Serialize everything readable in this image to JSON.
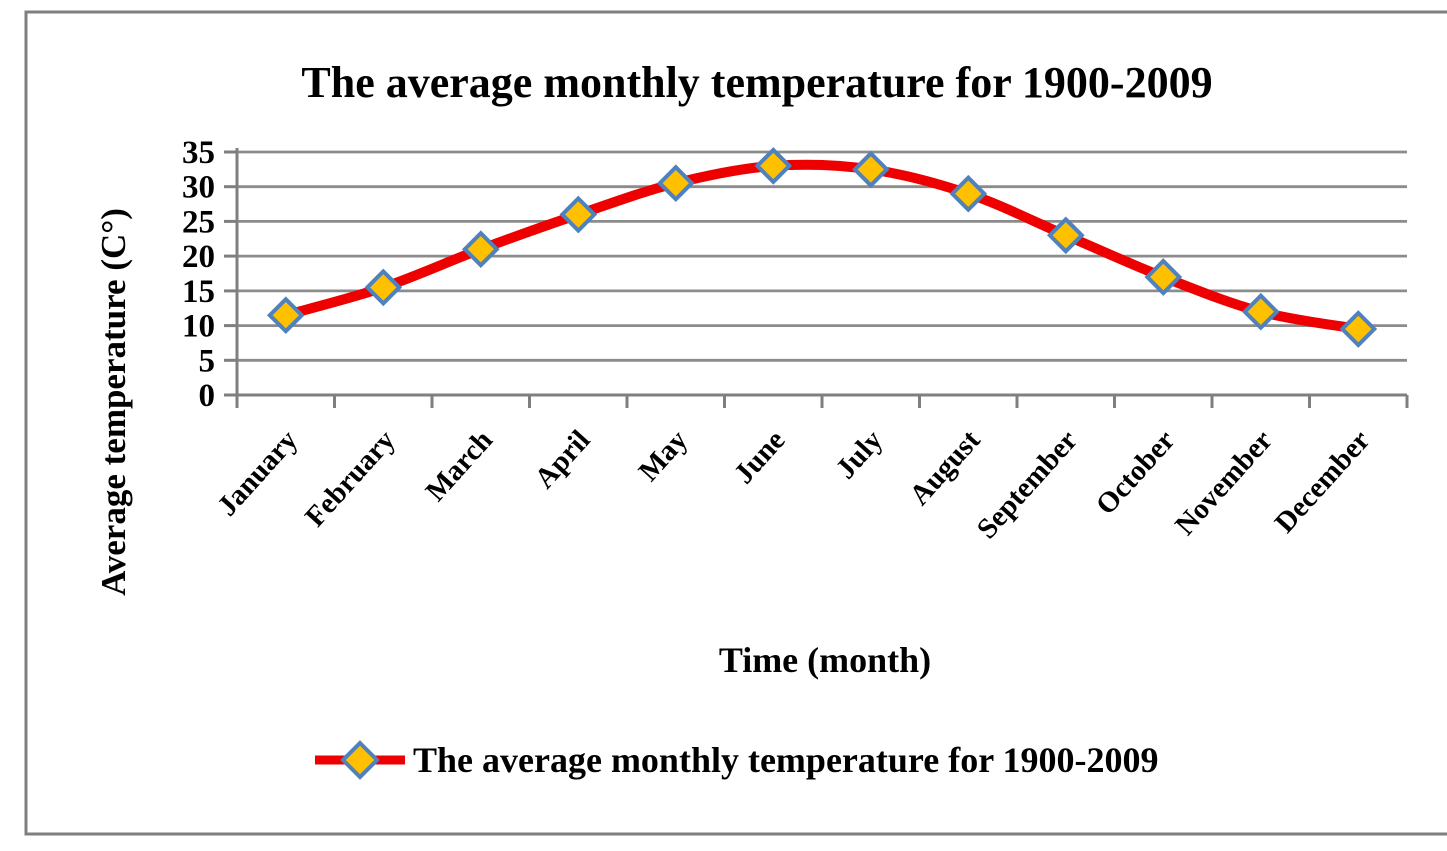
{
  "frame": {
    "border_color": "#7f7f7f",
    "background": "#ffffff"
  },
  "chart_data": {
    "type": "line",
    "title": "The average monthly temperature for 1900-2009",
    "xlabel": "Time (month)",
    "ylabel": "Average temperature (C°)",
    "categories": [
      "January",
      "February",
      "March",
      "April",
      "May",
      "June",
      "July",
      "August",
      "September",
      "October",
      "November",
      "December"
    ],
    "series": [
      {
        "name": "The average monthly temperature for 1900-2009",
        "values": [
          11.5,
          15.5,
          21,
          26,
          30.5,
          33,
          32.5,
          29,
          23,
          17,
          12,
          9.5
        ]
      }
    ],
    "ylim": [
      0,
      35
    ],
    "yticks": [
      0,
      5,
      10,
      15,
      20,
      25,
      30,
      35
    ],
    "grid": true,
    "smooth": true,
    "legend_position": "bottom",
    "marker_shape": "diamond",
    "colors": {
      "line": "#ee0000",
      "marker_fill": "#ffc000",
      "marker_border": "#4f81bd",
      "grid": "#8c8c8c",
      "axis": "#7f7f7f",
      "text": "#000000"
    }
  }
}
